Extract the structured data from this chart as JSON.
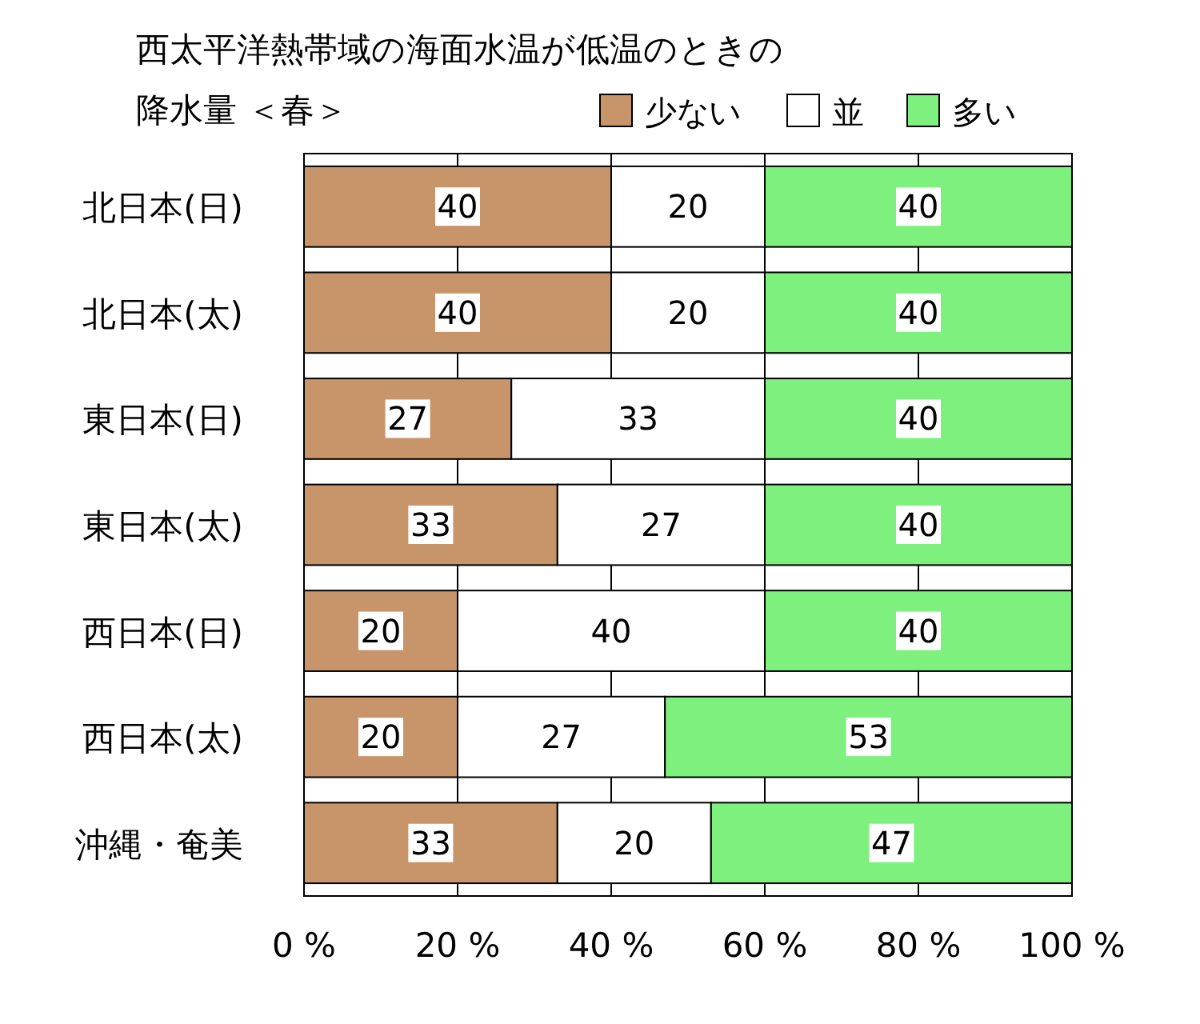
{
  "chart_data": {
    "type": "bar",
    "orientation": "horizontal",
    "stacked": true,
    "title": "西太平洋熱帯域の海面水温が低温のときの",
    "subtitle": "降水量 ＜春＞",
    "categories": [
      "北日本(日)",
      "北日本(太)",
      "東日本(日)",
      "東日本(太)",
      "西日本(日)",
      "西日本(太)",
      "沖縄・奄美"
    ],
    "series": [
      {
        "name": "少ない",
        "color": "#c8956a",
        "values": [
          40,
          40,
          27,
          33,
          20,
          20,
          33
        ]
      },
      {
        "name": "並",
        "color": "#ffffff",
        "values": [
          20,
          20,
          33,
          27,
          40,
          27,
          20
        ]
      },
      {
        "name": "多い",
        "color": "#7ef07e",
        "values": [
          40,
          40,
          40,
          40,
          40,
          53,
          47
        ]
      }
    ],
    "xlim": [
      0,
      100
    ],
    "xticks": [
      {
        "value": 0,
        "label": "0 %"
      },
      {
        "value": 20,
        "label": "20 %"
      },
      {
        "value": 40,
        "label": "40 %"
      },
      {
        "value": 60,
        "label": "60 %"
      },
      {
        "value": 80,
        "label": "80 %"
      },
      {
        "value": 100,
        "label": "100 %"
      }
    ],
    "grid": "x",
    "legend": "top right",
    "data_labels": true
  }
}
